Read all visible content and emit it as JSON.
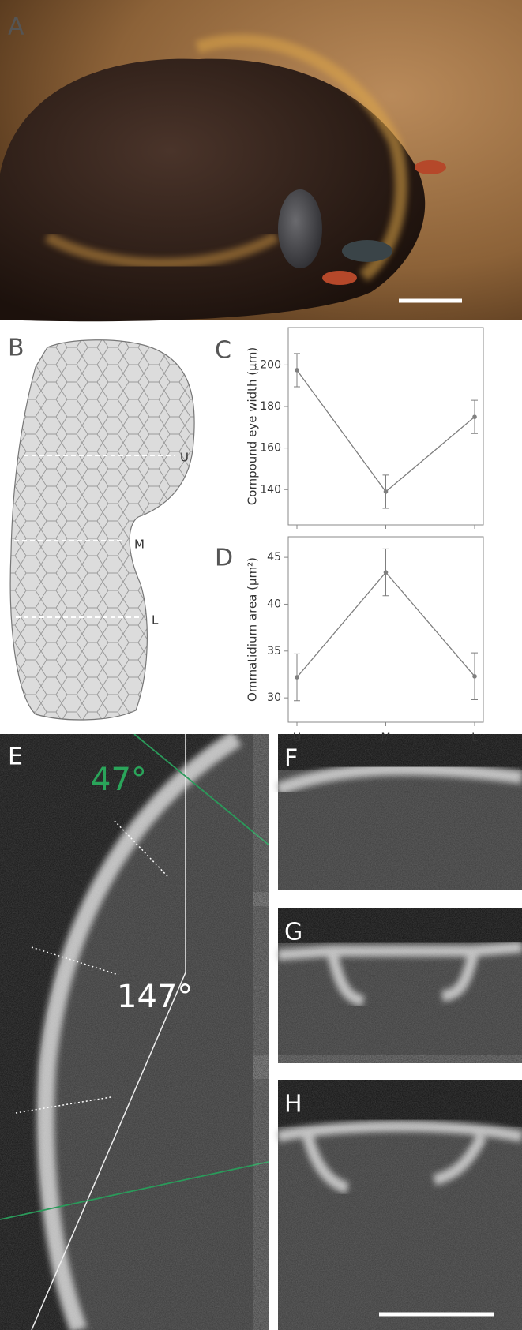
{
  "panel_labels": [
    "A",
    "B",
    "C",
    "D",
    "E",
    "F",
    "G",
    "H"
  ],
  "eye_levels": [
    "U",
    "M",
    "L"
  ],
  "angles": [
    "47°",
    "147°"
  ],
  "chart_data": [
    {
      "type": "line",
      "y_label": "Compound eye width (μm)",
      "categories": [
        null,
        null,
        null
      ],
      "values": [
        197.5,
        139,
        175
      ],
      "errors": [
        8,
        8,
        8
      ],
      "color": "#7f7f7f",
      "ylim": [
        123,
        218
      ],
      "yticks": [
        140,
        160,
        180,
        200
      ]
    },
    {
      "type": "line",
      "y_label": "Ommatidium area (μm²)",
      "categories": [
        "U",
        "M",
        "L"
      ],
      "values": [
        32.2,
        43.4,
        32.3
      ],
      "errors": [
        2.5,
        2.5,
        2.5
      ],
      "color": "#7f7f7f",
      "ylim": [
        27.4,
        47.2
      ],
      "yticks": [
        30,
        35,
        40,
        45
      ]
    }
  ]
}
